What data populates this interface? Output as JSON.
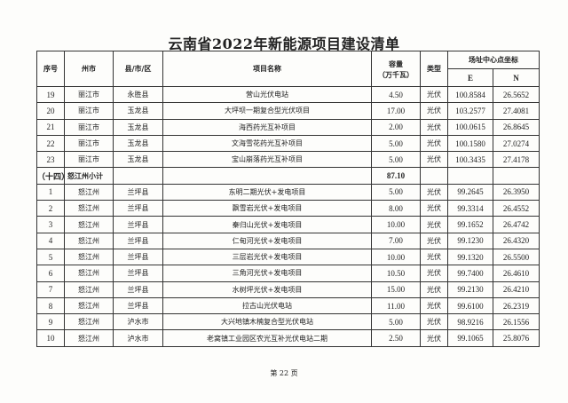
{
  "title": "云南省2022年新能源项目建设清单",
  "headers": {
    "no": "序号",
    "city": "州市",
    "county": "县/市/区",
    "name": "项目名称",
    "capacity": "容量\n（万千瓦）",
    "type": "类型",
    "coord": "场址中心点坐标",
    "e": "E",
    "n": "N"
  },
  "rows": [
    {
      "no": "19",
      "city": "丽江市",
      "county": "永胜县",
      "name": "营山光伏电站",
      "capacity": "4.50",
      "type": "光伏",
      "e": "100.8584",
      "n": "26.5652"
    },
    {
      "no": "20",
      "city": "丽江市",
      "county": "玉龙县",
      "name": "大坪坝一期复合型光伏项目",
      "capacity": "17.00",
      "type": "光伏",
      "e": "103.2577",
      "n": "27.4081"
    },
    {
      "no": "21",
      "city": "丽江市",
      "county": "玉龙县",
      "name": "海西药光互补项目",
      "capacity": "2.00",
      "type": "光伏",
      "e": "100.0615",
      "n": "26.8645"
    },
    {
      "no": "22",
      "city": "丽江市",
      "county": "玉龙县",
      "name": "文海雪花药光互补项目",
      "capacity": "5.00",
      "type": "光伏",
      "e": "100.1580",
      "n": "27.0274"
    },
    {
      "no": "23",
      "city": "丽江市",
      "county": "玉龙县",
      "name": "宝山崩落药光互补项目",
      "capacity": "5.00",
      "type": "光伏",
      "e": "100.3435",
      "n": "27.4178"
    },
    {
      "no": "（十四）",
      "city": "怒江州小计",
      "county": "",
      "name": "",
      "capacity": "87.10",
      "type": "",
      "e": "",
      "n": "",
      "subtotal": true
    },
    {
      "no": "1",
      "city": "怒江州",
      "county": "兰坪县",
      "name": "东明二期光伏+发电项目",
      "capacity": "5.00",
      "type": "光伏",
      "e": "99.2645",
      "n": "26.3950"
    },
    {
      "no": "2",
      "city": "怒江州",
      "county": "兰坪县",
      "name": "飘雪岩光伏+发电项目",
      "capacity": "8.00",
      "type": "光伏",
      "e": "99.3314",
      "n": "26.4552"
    },
    {
      "no": "3",
      "city": "怒江州",
      "county": "兰坪县",
      "name": "秦归山光伏+发电项目",
      "capacity": "10.00",
      "type": "光伏",
      "e": "99.1652",
      "n": "26.4742"
    },
    {
      "no": "4",
      "city": "怒江州",
      "county": "兰坪县",
      "name": "仁甸河光伏+发电项目",
      "capacity": "7.00",
      "type": "光伏",
      "e": "99.1230",
      "n": "26.4320"
    },
    {
      "no": "5",
      "city": "怒江州",
      "county": "兰坪县",
      "name": "三层岩光伏+发电项目",
      "capacity": "10.00",
      "type": "光伏",
      "e": "99.1320",
      "n": "26.5500"
    },
    {
      "no": "6",
      "city": "怒江州",
      "county": "兰坪县",
      "name": "三角河光伏+发电项目",
      "capacity": "10.50",
      "type": "光伏",
      "e": "99.7400",
      "n": "26.4610"
    },
    {
      "no": "7",
      "city": "怒江州",
      "county": "兰坪县",
      "name": "水树坪光伏+发电项目",
      "capacity": "15.00",
      "type": "光伏",
      "e": "99.2130",
      "n": "26.4210"
    },
    {
      "no": "8",
      "city": "怒江州",
      "county": "兰坪县",
      "name": "拉古山光伏电站",
      "capacity": "11.00",
      "type": "光伏",
      "e": "99.6100",
      "n": "26.2319"
    },
    {
      "no": "9",
      "city": "怒江州",
      "county": "泸水市",
      "name": "大兴地镇木楠复合型光伏电站",
      "capacity": "5.00",
      "type": "光伏",
      "e": "98.9216",
      "n": "26.1556"
    },
    {
      "no": "10",
      "city": "怒江州",
      "county": "泸水市",
      "name": "老窝镇工业园区农光互补光伏电站二期",
      "capacity": "2.50",
      "type": "光伏",
      "e": "99.1065",
      "n": "25.8076"
    }
  ],
  "footer": "第 22 页"
}
